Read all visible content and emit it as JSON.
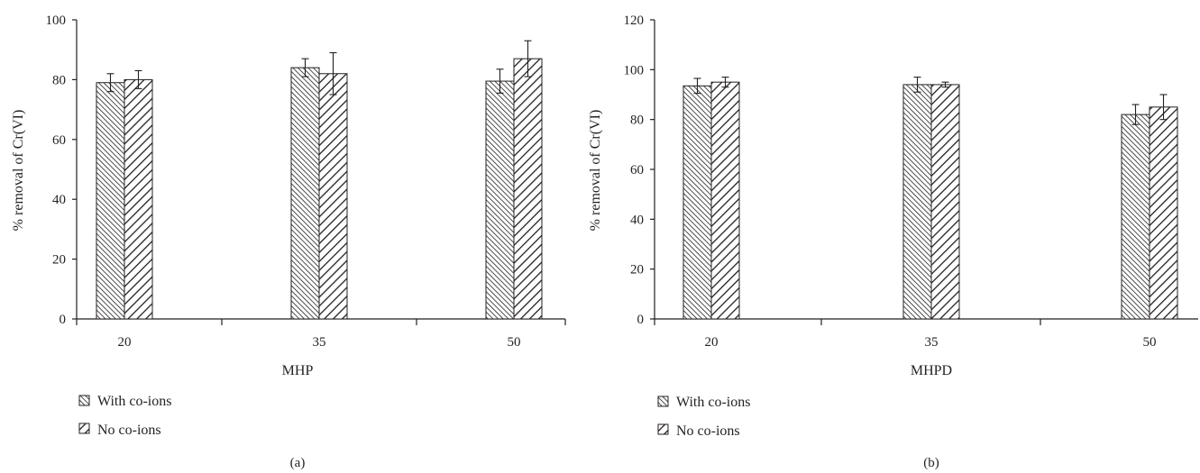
{
  "colors": {
    "ink": "#231f20",
    "bar_fill": "#ffffff"
  },
  "legend_swatches": {
    "with_coions": "hatch-left-dense",
    "no_coions": "hatch-right-wide"
  },
  "chart_data": [
    {
      "type": "bar",
      "panel_label": "(a)",
      "xlabel": "MHP",
      "ylabel": "% removal of Cr(VI)",
      "categories": [
        "20",
        "35",
        "50"
      ],
      "ylim": [
        0,
        100
      ],
      "yticks": [
        "0",
        "20",
        "40",
        "60",
        "80",
        "100"
      ],
      "grid": false,
      "legend": "bottom-left",
      "series": [
        {
          "name": "With co-ions",
          "values": [
            79,
            84,
            79.5
          ],
          "errors": [
            3,
            3,
            4
          ]
        },
        {
          "name": "No co-ions",
          "values": [
            80,
            82,
            87
          ],
          "errors": [
            3,
            7,
            6
          ]
        }
      ]
    },
    {
      "type": "bar",
      "panel_label": "(b)",
      "xlabel": "MHPD",
      "ylabel": "% removal of Cr(VI)",
      "categories": [
        "20",
        "35",
        "50"
      ],
      "ylim": [
        0,
        120
      ],
      "yticks": [
        "0",
        "20",
        "40",
        "60",
        "80",
        "100",
        "120"
      ],
      "grid": false,
      "legend": "bottom-left",
      "series": [
        {
          "name": "With co-ions",
          "values": [
            93.5,
            94,
            82
          ],
          "errors": [
            3,
            3,
            4
          ]
        },
        {
          "name": "No co-ions",
          "values": [
            95,
            94,
            85
          ],
          "errors": [
            2,
            1,
            5
          ]
        }
      ]
    }
  ]
}
